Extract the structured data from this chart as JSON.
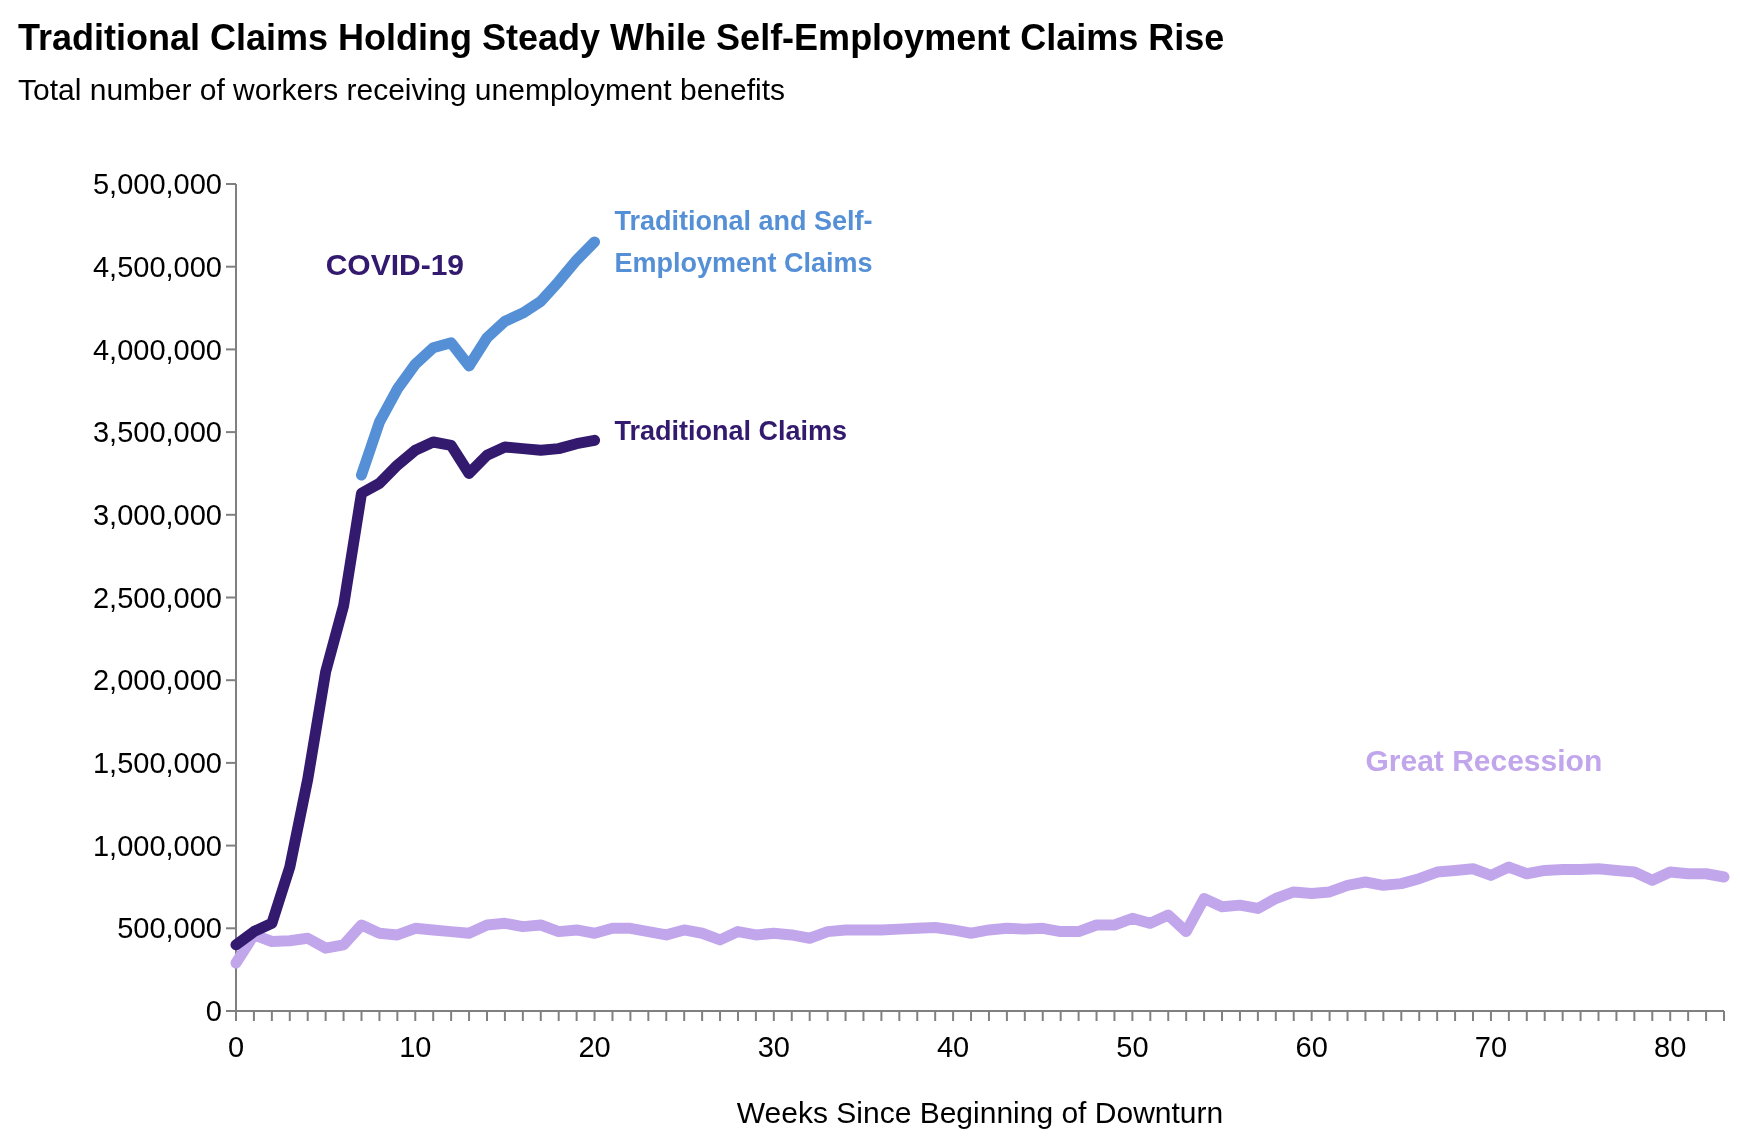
{
  "chart_data": {
    "type": "line",
    "title": "Traditional Claims Holding Steady While Self-Employment Claims Rise",
    "subtitle": "Total number of workers receiving unemployment benefits",
    "xlabel": "Weeks Since Beginning of Downturn",
    "annotations": [
      "COVID-19",
      "Great Recession"
    ],
    "xlim": [
      0,
      83
    ],
    "xticks": [
      0,
      {
        "value": 1,
        "label": null
      },
      {
        "value": 2,
        "label": null
      },
      {
        "value": 3,
        "label": null
      },
      {
        "value": 4,
        "label": null
      },
      {
        "value": 5,
        "label": null
      },
      {
        "value": 6,
        "label": null
      },
      {
        "value": 7,
        "label": null
      },
      {
        "value": 8,
        "label": null
      },
      {
        "value": 9,
        "label": null
      },
      10,
      {
        "value": 11,
        "label": null
      },
      {
        "value": 12,
        "label": null
      },
      {
        "value": 13,
        "label": null
      },
      {
        "value": 14,
        "label": null
      },
      {
        "value": 15,
        "label": null
      },
      {
        "value": 16,
        "label": null
      },
      {
        "value": 17,
        "label": null
      },
      {
        "value": 18,
        "label": null
      },
      {
        "value": 19,
        "label": null
      },
      20,
      {
        "value": 21,
        "label": null
      },
      {
        "value": 22,
        "label": null
      },
      {
        "value": 23,
        "label": null
      },
      {
        "value": 24,
        "label": null
      },
      {
        "value": 25,
        "label": null
      },
      {
        "value": 26,
        "label": null
      },
      {
        "value": 27,
        "label": null
      },
      {
        "value": 28,
        "label": null
      },
      {
        "value": 29,
        "label": null
      },
      30,
      {
        "value": 31,
        "label": null
      },
      {
        "value": 32,
        "label": null
      },
      {
        "value": 33,
        "label": null
      },
      {
        "value": 34,
        "label": null
      },
      {
        "value": 35,
        "label": null
      },
      {
        "value": 36,
        "label": null
      },
      {
        "value": 37,
        "label": null
      },
      {
        "value": 38,
        "label": null
      },
      {
        "value": 39,
        "label": null
      },
      40,
      {
        "value": 41,
        "label": null
      },
      {
        "value": 42,
        "label": null
      },
      {
        "value": 43,
        "label": null
      },
      {
        "value": 44,
        "label": null
      },
      {
        "value": 45,
        "label": null
      },
      {
        "value": 46,
        "label": null
      },
      {
        "value": 47,
        "label": null
      },
      {
        "value": 48,
        "label": null
      },
      {
        "value": 49,
        "label": null
      },
      50,
      {
        "value": 51,
        "label": null
      },
      {
        "value": 52,
        "label": null
      },
      {
        "value": 53,
        "label": null
      },
      {
        "value": 54,
        "label": null
      },
      {
        "value": 55,
        "label": null
      },
      {
        "value": 56,
        "label": null
      },
      {
        "value": 57,
        "label": null
      },
      {
        "value": 58,
        "label": null
      },
      {
        "value": 59,
        "label": null
      },
      60,
      {
        "value": 61,
        "label": null
      },
      {
        "value": 62,
        "label": null
      },
      {
        "value": 63,
        "label": null
      },
      {
        "value": 64,
        "label": null
      },
      {
        "value": 65,
        "label": null
      },
      {
        "value": 66,
        "label": null
      },
      {
        "value": 67,
        "label": null
      },
      {
        "value": 68,
        "label": null
      },
      {
        "value": 69,
        "label": null
      },
      70,
      {
        "value": 71,
        "label": null
      },
      {
        "value": 72,
        "label": null
      },
      {
        "value": 73,
        "label": null
      },
      {
        "value": 74,
        "label": null
      },
      {
        "value": 75,
        "label": null
      },
      {
        "value": 76,
        "label": null
      },
      {
        "value": 77,
        "label": null
      },
      {
        "value": 78,
        "label": null
      },
      {
        "value": 79,
        "label": null
      },
      80,
      {
        "value": 81,
        "label": null
      },
      {
        "value": 82,
        "label": null
      },
      {
        "value": 83,
        "label": null
      }
    ],
    "ylim": [
      0,
      5000000
    ],
    "yticks": [
      {
        "value": 0,
        "label": "0"
      },
      {
        "value": 500000,
        "label": "500,000"
      },
      {
        "value": 1000000,
        "label": "1,000,000"
      },
      {
        "value": 1500000,
        "label": "1,500,000"
      },
      {
        "value": 2000000,
        "label": "2,000,000"
      },
      {
        "value": 2500000,
        "label": "2,500,000"
      },
      {
        "value": 3000000,
        "label": "3,000,000"
      },
      {
        "value": 3500000,
        "label": "3,500,000"
      },
      {
        "value": 4000000,
        "label": "4,000,000"
      },
      {
        "value": 4500000,
        "label": "4,500,000"
      },
      {
        "value": 5000000,
        "label": "5,000,000"
      }
    ],
    "grid": false,
    "marker": "none",
    "line_style": "solid",
    "series": [
      {
        "color": "#c2a6ec",
        "x": [
          0,
          1,
          2,
          3,
          4,
          5,
          6,
          7,
          8,
          9,
          10,
          11,
          12,
          13,
          14,
          15,
          16,
          17,
          18,
          19,
          20,
          21,
          22,
          23,
          24,
          25,
          26,
          27,
          28,
          29,
          30,
          31,
          32,
          33,
          34,
          35,
          36,
          37,
          38,
          39,
          40,
          41,
          42,
          43,
          44,
          45,
          46,
          47,
          48,
          49,
          50,
          51,
          52,
          53,
          54,
          55,
          56,
          57,
          58,
          59,
          60,
          61,
          62,
          63,
          64,
          65,
          66,
          67,
          68,
          69,
          70,
          71,
          72,
          73,
          74,
          75,
          76,
          77,
          78,
          79,
          80,
          81,
          82,
          83
        ],
        "values": [
          290000,
          460000,
          420000,
          425000,
          440000,
          380000,
          400000,
          520000,
          470000,
          460000,
          500000,
          490000,
          480000,
          470000,
          520000,
          530000,
          510000,
          520000,
          480000,
          490000,
          470000,
          500000,
          500000,
          480000,
          460000,
          490000,
          470000,
          430000,
          480000,
          460000,
          470000,
          460000,
          440000,
          480000,
          490000,
          490000,
          490000,
          495000,
          500000,
          505000,
          490000,
          470000,
          490000,
          500000,
          495000,
          500000,
          480000,
          480000,
          520000,
          520000,
          560000,
          530000,
          580000,
          480000,
          680000,
          630000,
          640000,
          620000,
          680000,
          720000,
          710000,
          720000,
          760000,
          780000,
          760000,
          770000,
          800000,
          840000,
          850000,
          860000,
          820000,
          870000,
          830000,
          850000,
          855000,
          855000,
          860000,
          850000,
          840000,
          790000,
          840000,
          830000,
          830000,
          810000
        ]
      },
      {
        "name": "Traditional and Self-Employment Claims",
        "color": "#5590d6",
        "x": [
          7,
          8,
          9,
          10,
          11,
          12,
          13,
          14,
          15,
          16,
          17,
          18,
          19,
          20
        ],
        "values": [
          3240000,
          3560000,
          3760000,
          3910000,
          4010000,
          4040000,
          3900000,
          4070000,
          4170000,
          4220000,
          4290000,
          4410000,
          4540000,
          4650000
        ]
      },
      {
        "name": "Traditional Claims",
        "color": "#331a6e",
        "x": [
          0,
          1,
          2,
          3,
          4,
          5,
          6,
          7,
          8,
          9,
          10,
          11,
          12,
          13,
          14,
          15,
          16,
          17,
          18,
          19,
          20
        ],
        "values": [
          400000,
          480000,
          530000,
          870000,
          1400000,
          2050000,
          2450000,
          3130000,
          3190000,
          3300000,
          3390000,
          3440000,
          3420000,
          3250000,
          3360000,
          3410000,
          3400000,
          3390000,
          3400000,
          3430000,
          3450000
        ]
      }
    ]
  }
}
